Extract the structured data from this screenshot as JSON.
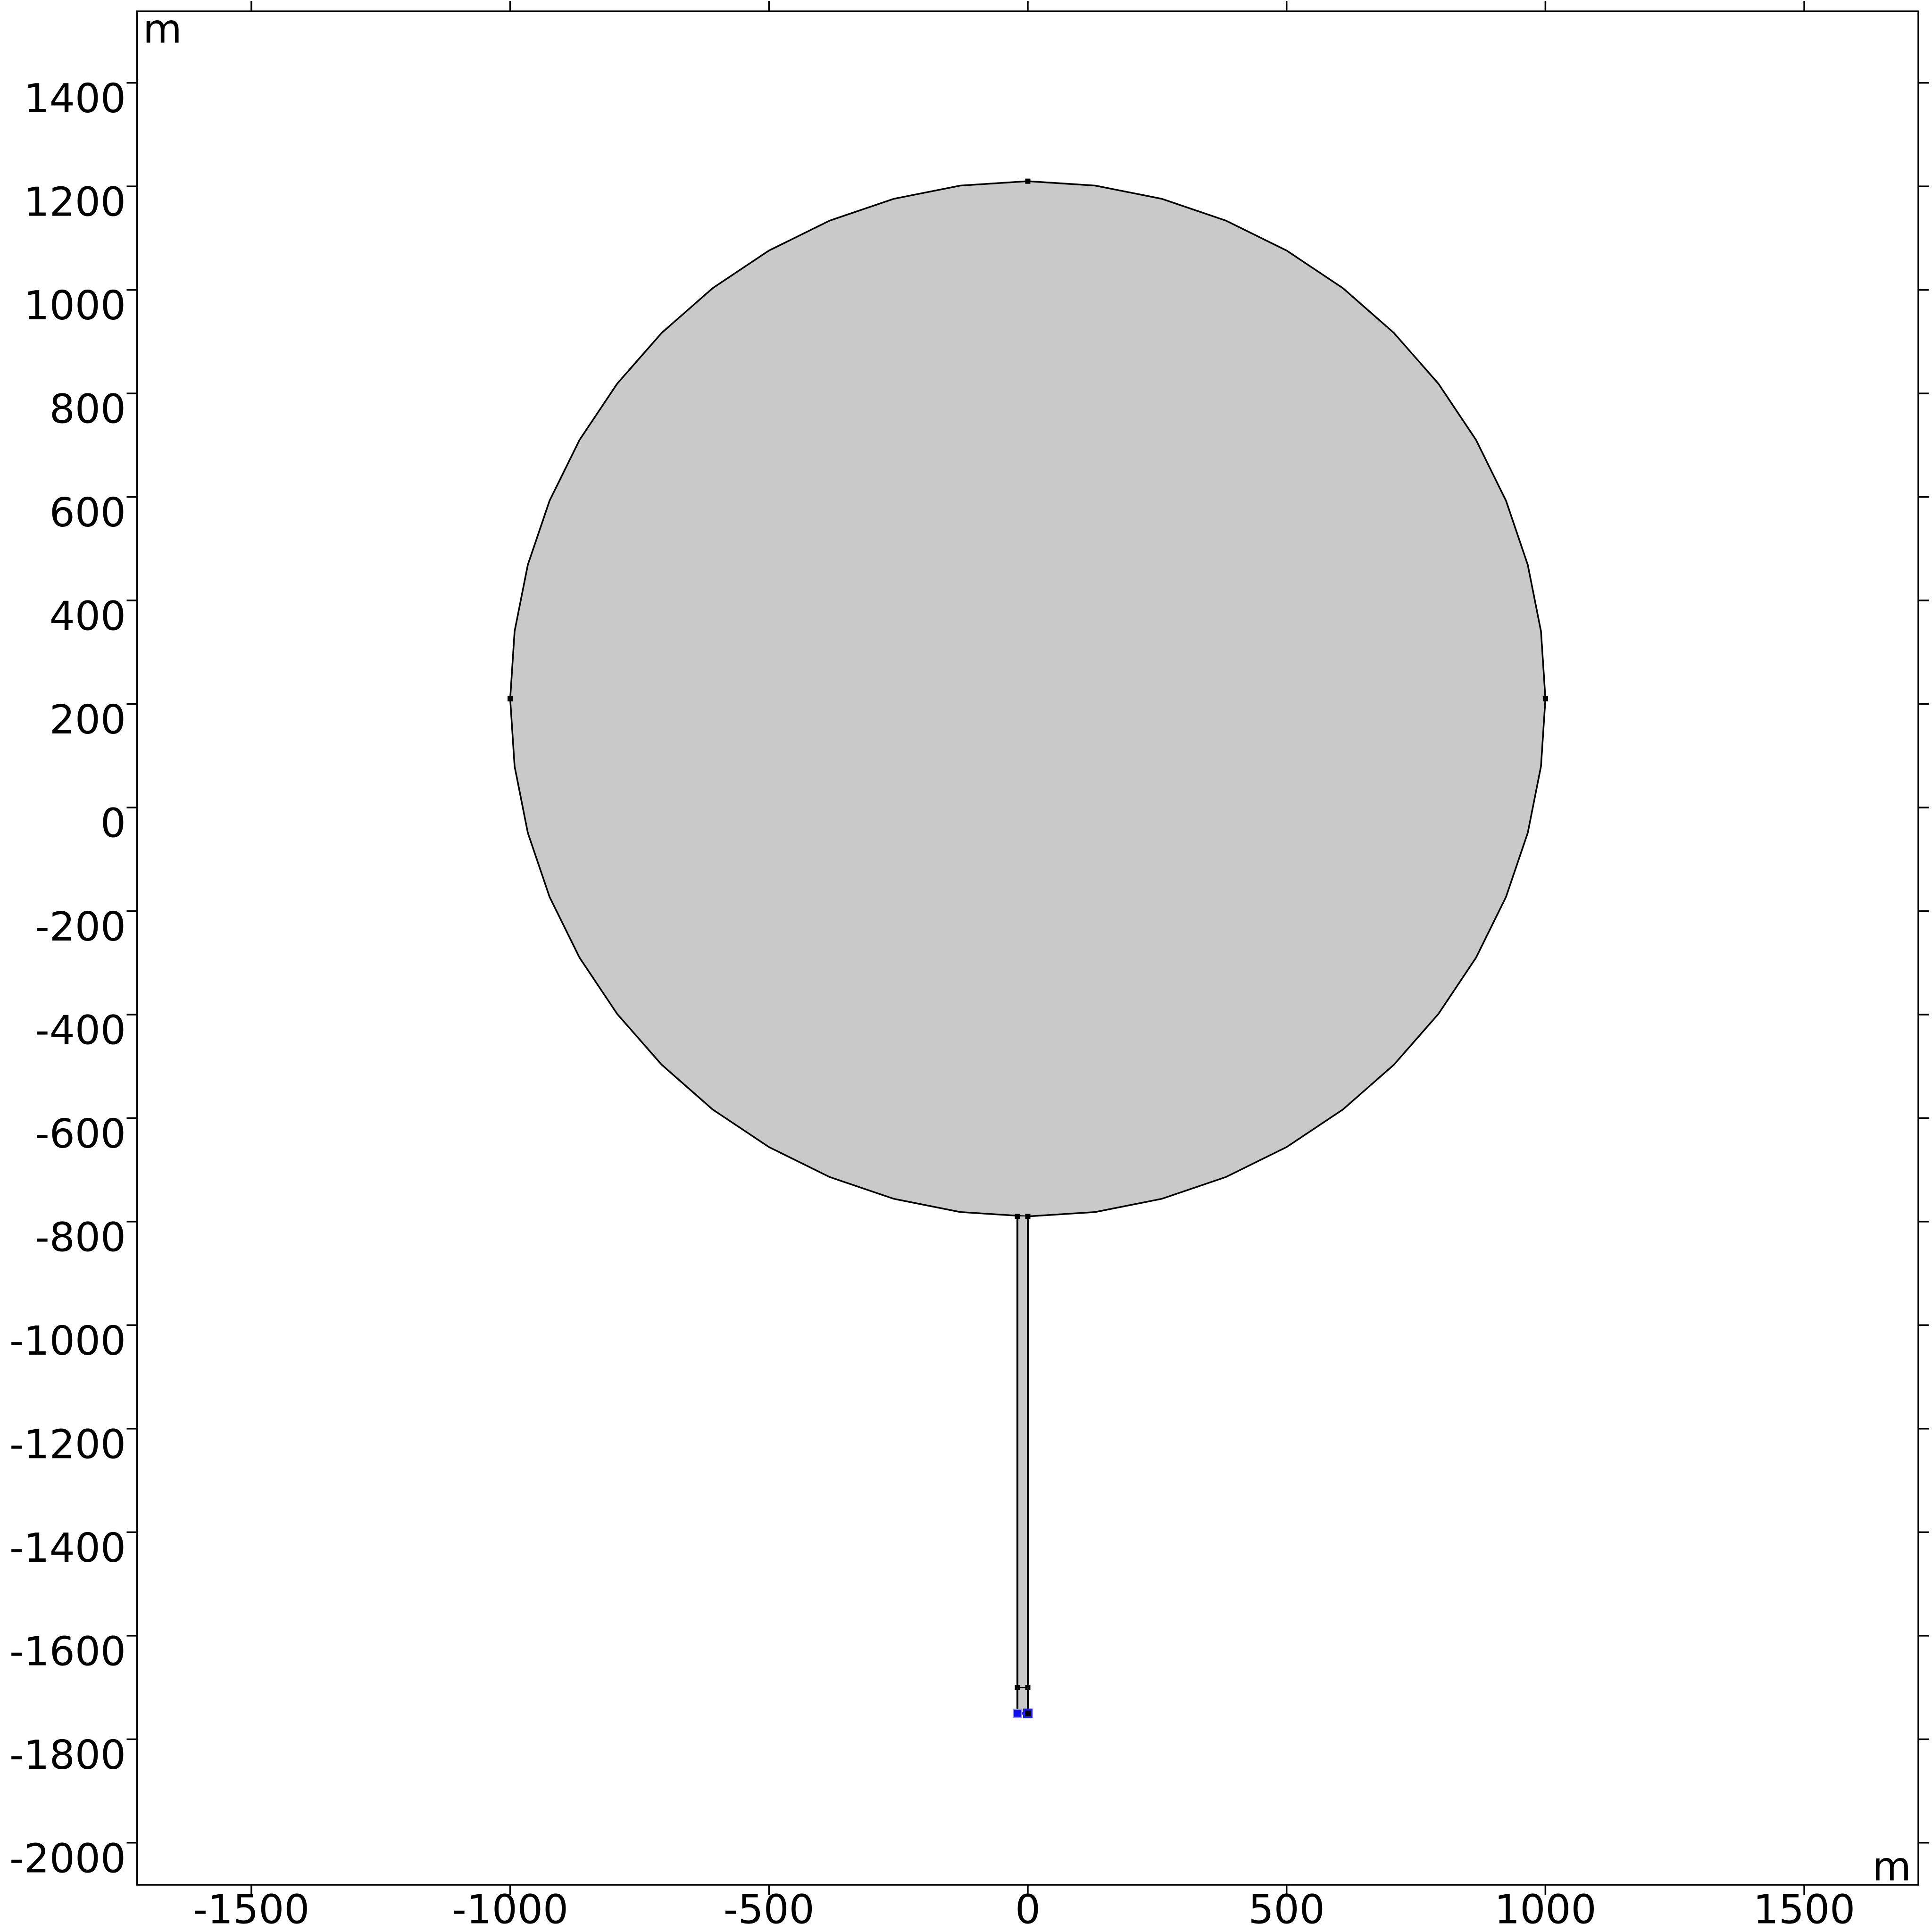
{
  "units": {
    "x": "m",
    "y": "m"
  },
  "axes": {
    "x_ticks": [
      -1500,
      -1000,
      -500,
      0,
      500,
      1000,
      1500
    ],
    "y_ticks": [
      1400,
      1200,
      1000,
      800,
      600,
      400,
      200,
      0,
      -200,
      -400,
      -600,
      -800,
      -1000,
      -1200,
      -1400,
      -1600,
      -1800,
      -2000
    ],
    "x_range_m": [
      -1722,
      1721
    ],
    "y_range_m": [
      -2082,
      1538
    ],
    "grid": false
  },
  "colors": {
    "background": "#ffffff",
    "domain_fill": "#c9c9c9",
    "edge": "#000000",
    "selection_fill": "#1010f0",
    "selection_halo": "#9090ff",
    "highlight_edge": "#2020f0"
  },
  "geometry": {
    "circle_domain": {
      "center_m": [
        0,
        210
      ],
      "radius_m": 1000,
      "facet_count": 48
    },
    "wellbore": {
      "x_left_m": -20,
      "x_right_m": 0,
      "y_top_m": -790,
      "y_mid_m": -1700,
      "y_bottom_m": -1750
    },
    "vertex_points_m": [
      [
        0,
        1210
      ],
      [
        -1000,
        210
      ],
      [
        1000,
        210
      ],
      [
        -20,
        -790
      ],
      [
        0,
        -790
      ],
      [
        -20,
        -1700
      ],
      [
        0,
        -1700
      ]
    ],
    "halo_point_m": [
      0,
      -1750
    ],
    "selected_point_m": [
      -20,
      -1750
    ]
  }
}
